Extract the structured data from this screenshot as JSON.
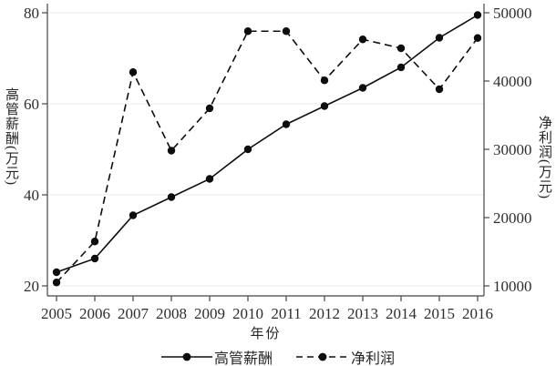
{
  "colors": {
    "background": "#ffffff",
    "axis": "#454545",
    "grid": "#ebebe8",
    "series": "#0d0d0d",
    "text": "#262626"
  },
  "chart_data": {
    "type": "line",
    "x": [
      2005,
      2006,
      2007,
      2008,
      2009,
      2010,
      2011,
      2012,
      2013,
      2014,
      2015,
      2016
    ],
    "x_axis": {
      "label": "年份"
    },
    "left_axis": {
      "label": "高管薪酬(万元)",
      "range": [
        20,
        80
      ],
      "ticks": [
        20,
        40,
        60,
        80
      ]
    },
    "right_axis": {
      "label": "净利润(万元)",
      "range": [
        10000,
        50000
      ],
      "ticks": [
        10000,
        20000,
        30000,
        40000,
        50000
      ]
    },
    "grid": "horizontal lines at left-axis ticks only",
    "legend_position": "bottom-center",
    "series": [
      {
        "name": "高管薪酬",
        "axis": "left",
        "line_style": "solid",
        "marker": "filled-circle",
        "color": "#0d0d0d",
        "values": [
          23,
          26,
          35.5,
          39.5,
          43.5,
          50,
          55.5,
          59.5,
          63.5,
          68,
          74.5,
          79.5
        ]
      },
      {
        "name": "净利润",
        "axis": "right",
        "line_style": "dashed",
        "marker": "filled-circle",
        "color": "#0d0d0d",
        "values": [
          10500,
          16500,
          41300,
          29800,
          36000,
          47300,
          47300,
          40100,
          46100,
          44800,
          38800,
          46300
        ]
      }
    ]
  }
}
